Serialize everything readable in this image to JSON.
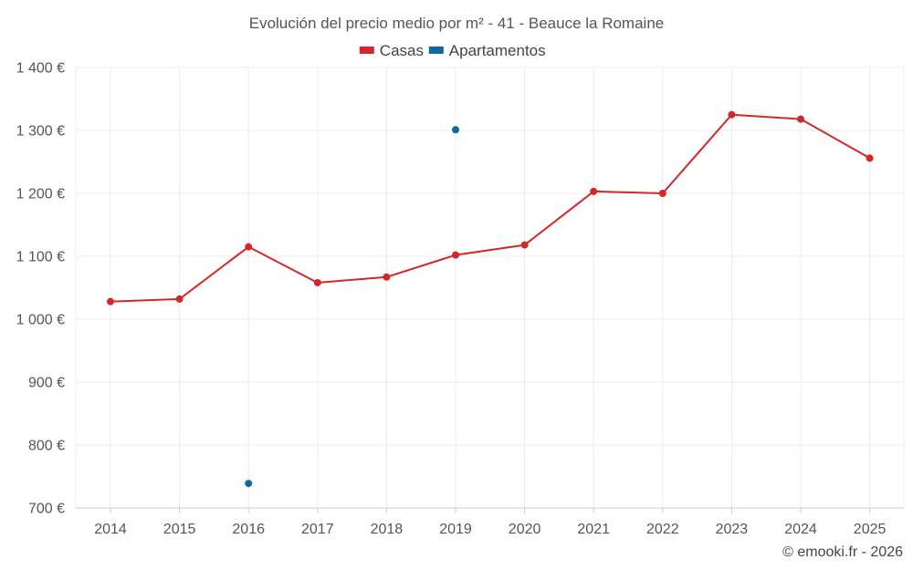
{
  "chart_data": {
    "type": "line",
    "title": "Evolución del precio medio por m² - 41 - Beauce la Romaine",
    "xlabel": "",
    "ylabel": "",
    "categories": [
      "2014",
      "2015",
      "2016",
      "2017",
      "2018",
      "2019",
      "2020",
      "2021",
      "2022",
      "2023",
      "2024",
      "2025"
    ],
    "ylim": [
      700,
      1400
    ],
    "yticks": [
      700,
      800,
      900,
      1000,
      1100,
      1200,
      1300,
      1400
    ],
    "ytick_labels": [
      "700 €",
      "800 €",
      "900 €",
      "1 000 €",
      "1 100 €",
      "1 200 €",
      "1 300 €",
      "1 400 €"
    ],
    "grid": true,
    "legend_position": "top-center",
    "series": [
      {
        "name": "Casas",
        "color": "#d62728",
        "values": [
          1028,
          1032,
          1115,
          1058,
          1067,
          1102,
          1118,
          1203,
          1200,
          1325,
          1318,
          1256
        ]
      },
      {
        "name": "Apartamentos",
        "color": "#0a6aa1",
        "values": [
          null,
          null,
          739,
          null,
          null,
          1301,
          null,
          null,
          null,
          null,
          null,
          null
        ]
      }
    ]
  },
  "credit": "© emooki.fr - 2026"
}
